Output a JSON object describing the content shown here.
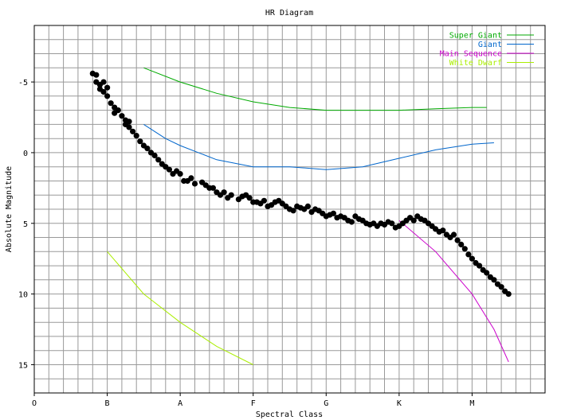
{
  "chart_data": {
    "type": "scatter",
    "title": "HR Diagram",
    "xlabel": "Spectral Class",
    "ylabel": "Absolute Magnitude",
    "x_tick_labels": [
      "O",
      "B",
      "A",
      "F",
      "G",
      "K",
      "M"
    ],
    "y_ticks": [
      -5,
      0,
      5,
      10,
      15
    ],
    "xlim": [
      0,
      7
    ],
    "ylim": [
      17,
      -9
    ],
    "y_inverted": true,
    "grid": true,
    "legend_position": "top-right",
    "series": [
      {
        "name": "Super Giant",
        "kind": "line",
        "color": "#00aa00",
        "points": [
          [
            1.5,
            -6.0
          ],
          [
            2.0,
            -5.0
          ],
          [
            2.5,
            -4.2
          ],
          [
            3.0,
            -3.6
          ],
          [
            3.5,
            -3.2
          ],
          [
            4.0,
            -3.0
          ],
          [
            4.5,
            -3.0
          ],
          [
            5.0,
            -3.0
          ],
          [
            5.5,
            -3.1
          ],
          [
            6.0,
            -3.2
          ],
          [
            6.2,
            -3.2
          ]
        ]
      },
      {
        "name": "Giant",
        "kind": "line",
        "color": "#0066cc",
        "points": [
          [
            1.5,
            -2.0
          ],
          [
            1.8,
            -1.0
          ],
          [
            2.0,
            -0.5
          ],
          [
            2.5,
            0.5
          ],
          [
            3.0,
            1.0
          ],
          [
            3.5,
            1.0
          ],
          [
            4.0,
            1.2
          ],
          [
            4.5,
            1.0
          ],
          [
            5.0,
            0.4
          ],
          [
            5.5,
            -0.2
          ],
          [
            6.0,
            -0.6
          ],
          [
            6.3,
            -0.7
          ]
        ]
      },
      {
        "name": "Main Sequence",
        "kind": "line",
        "color": "#cc00cc",
        "points": [
          [
            5.0,
            4.8
          ],
          [
            5.5,
            7.0
          ],
          [
            6.0,
            10.0
          ],
          [
            6.3,
            12.5
          ],
          [
            6.5,
            14.8
          ]
        ]
      },
      {
        "name": "White Dwarf",
        "kind": "line",
        "color": "#aaee00",
        "points": [
          [
            1.0,
            7.0
          ],
          [
            1.5,
            10.0
          ],
          [
            2.0,
            12.0
          ],
          [
            2.5,
            13.7
          ],
          [
            3.0,
            15.0
          ]
        ]
      },
      {
        "name": "",
        "kind": "points",
        "color": "#000000",
        "points": [
          [
            0.8,
            -5.6
          ],
          [
            0.85,
            -5.5
          ],
          [
            0.85,
            -5.0
          ],
          [
            0.9,
            -4.8
          ],
          [
            0.9,
            -4.5
          ],
          [
            0.95,
            -5.0
          ],
          [
            0.95,
            -4.3
          ],
          [
            1.0,
            -4.0
          ],
          [
            1.0,
            -4.6
          ],
          [
            1.05,
            -3.5
          ],
          [
            1.1,
            -3.2
          ],
          [
            1.1,
            -2.8
          ],
          [
            1.15,
            -3.0
          ],
          [
            1.2,
            -2.6
          ],
          [
            1.25,
            -2.3
          ],
          [
            1.25,
            -2.0
          ],
          [
            1.3,
            -1.8
          ],
          [
            1.3,
            -2.2
          ],
          [
            1.35,
            -1.5
          ],
          [
            1.4,
            -1.2
          ],
          [
            1.45,
            -0.8
          ],
          [
            1.5,
            -0.5
          ],
          [
            1.55,
            -0.3
          ],
          [
            1.6,
            0.0
          ],
          [
            1.65,
            0.2
          ],
          [
            1.7,
            0.5
          ],
          [
            1.75,
            0.8
          ],
          [
            1.8,
            1.0
          ],
          [
            1.85,
            1.2
          ],
          [
            1.9,
            1.5
          ],
          [
            1.95,
            1.3
          ],
          [
            2.0,
            1.5
          ],
          [
            2.05,
            2.0
          ],
          [
            2.1,
            2.0
          ],
          [
            2.15,
            1.8
          ],
          [
            2.2,
            2.2
          ],
          [
            2.3,
            2.1
          ],
          [
            2.35,
            2.3
          ],
          [
            2.4,
            2.5
          ],
          [
            2.45,
            2.5
          ],
          [
            2.5,
            2.8
          ],
          [
            2.55,
            3.0
          ],
          [
            2.6,
            2.8
          ],
          [
            2.65,
            3.2
          ],
          [
            2.7,
            3.0
          ],
          [
            2.8,
            3.3
          ],
          [
            2.85,
            3.1
          ],
          [
            2.9,
            3.0
          ],
          [
            2.95,
            3.2
          ],
          [
            3.0,
            3.5
          ],
          [
            3.05,
            3.5
          ],
          [
            3.1,
            3.6
          ],
          [
            3.15,
            3.4
          ],
          [
            3.2,
            3.8
          ],
          [
            3.25,
            3.7
          ],
          [
            3.3,
            3.5
          ],
          [
            3.35,
            3.4
          ],
          [
            3.4,
            3.6
          ],
          [
            3.45,
            3.8
          ],
          [
            3.5,
            4.0
          ],
          [
            3.55,
            4.1
          ],
          [
            3.6,
            3.8
          ],
          [
            3.65,
            3.9
          ],
          [
            3.7,
            4.0
          ],
          [
            3.75,
            3.8
          ],
          [
            3.8,
            4.2
          ],
          [
            3.85,
            4.0
          ],
          [
            3.9,
            4.1
          ],
          [
            3.95,
            4.3
          ],
          [
            4.0,
            4.5
          ],
          [
            4.05,
            4.4
          ],
          [
            4.1,
            4.3
          ],
          [
            4.15,
            4.6
          ],
          [
            4.2,
            4.5
          ],
          [
            4.25,
            4.6
          ],
          [
            4.3,
            4.8
          ],
          [
            4.35,
            4.9
          ],
          [
            4.4,
            4.5
          ],
          [
            4.45,
            4.7
          ],
          [
            4.5,
            4.8
          ],
          [
            4.55,
            5.0
          ],
          [
            4.6,
            5.1
          ],
          [
            4.65,
            5.0
          ],
          [
            4.7,
            5.2
          ],
          [
            4.75,
            5.0
          ],
          [
            4.8,
            5.1
          ],
          [
            4.85,
            4.9
          ],
          [
            4.9,
            5.0
          ],
          [
            4.95,
            5.3
          ],
          [
            5.0,
            5.2
          ],
          [
            5.05,
            5.0
          ],
          [
            5.1,
            4.8
          ],
          [
            5.15,
            4.6
          ],
          [
            5.2,
            4.8
          ],
          [
            5.25,
            4.5
          ],
          [
            5.3,
            4.7
          ],
          [
            5.35,
            4.8
          ],
          [
            5.4,
            5.0
          ],
          [
            5.45,
            5.2
          ],
          [
            5.5,
            5.4
          ],
          [
            5.55,
            5.6
          ],
          [
            5.6,
            5.5
          ],
          [
            5.65,
            5.8
          ],
          [
            5.7,
            6.0
          ],
          [
            5.75,
            5.8
          ],
          [
            5.8,
            6.2
          ],
          [
            5.85,
            6.5
          ],
          [
            5.9,
            6.8
          ],
          [
            5.95,
            7.2
          ],
          [
            6.0,
            7.5
          ],
          [
            6.05,
            7.8
          ],
          [
            6.1,
            8.0
          ],
          [
            6.15,
            8.3
          ],
          [
            6.2,
            8.5
          ],
          [
            6.25,
            8.8
          ],
          [
            6.3,
            9.0
          ],
          [
            6.35,
            9.3
          ],
          [
            6.4,
            9.5
          ],
          [
            6.45,
            9.8
          ],
          [
            6.5,
            10.0
          ]
        ]
      }
    ]
  }
}
